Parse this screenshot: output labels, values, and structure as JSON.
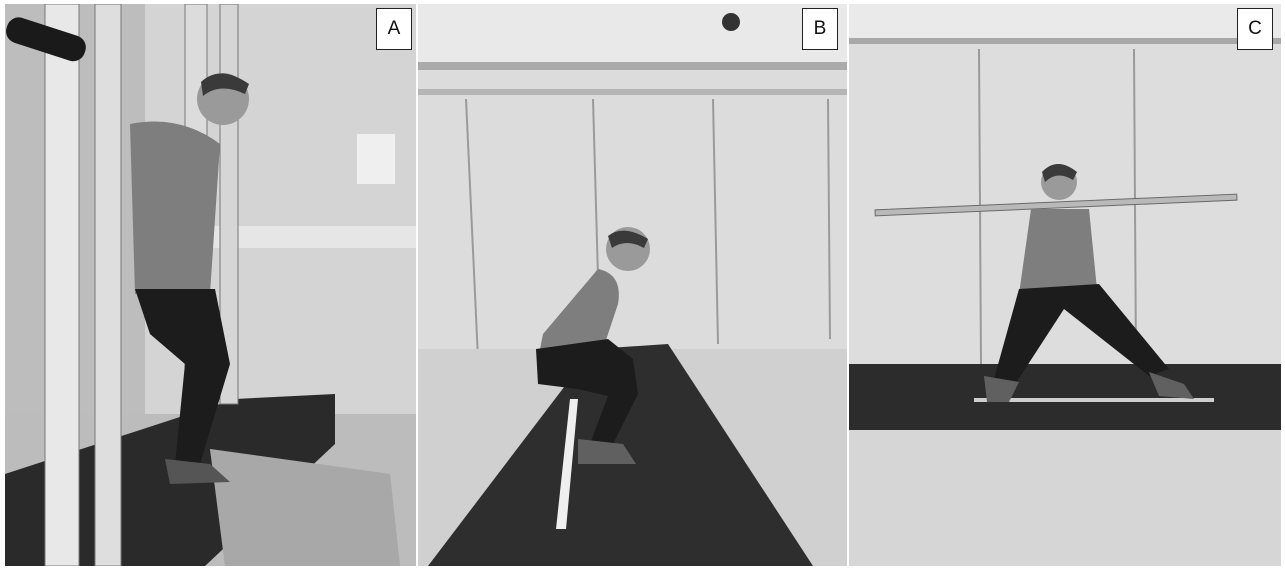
{
  "figure": {
    "panels": [
      {
        "label": "A",
        "scene": "photo-squat-with-rack"
      },
      {
        "label": "B",
        "scene": "photo-deep-squat-side-view"
      },
      {
        "label": "C",
        "scene": "photo-side-lunge-with-barbell"
      }
    ]
  },
  "colors": {
    "wall": "#d9d9d9",
    "floor": "#c8c8c8",
    "mat": "#2f2f2f",
    "skin": "#9a9a9a",
    "shirt": "#808080",
    "pants": "#1c1c1c"
  }
}
